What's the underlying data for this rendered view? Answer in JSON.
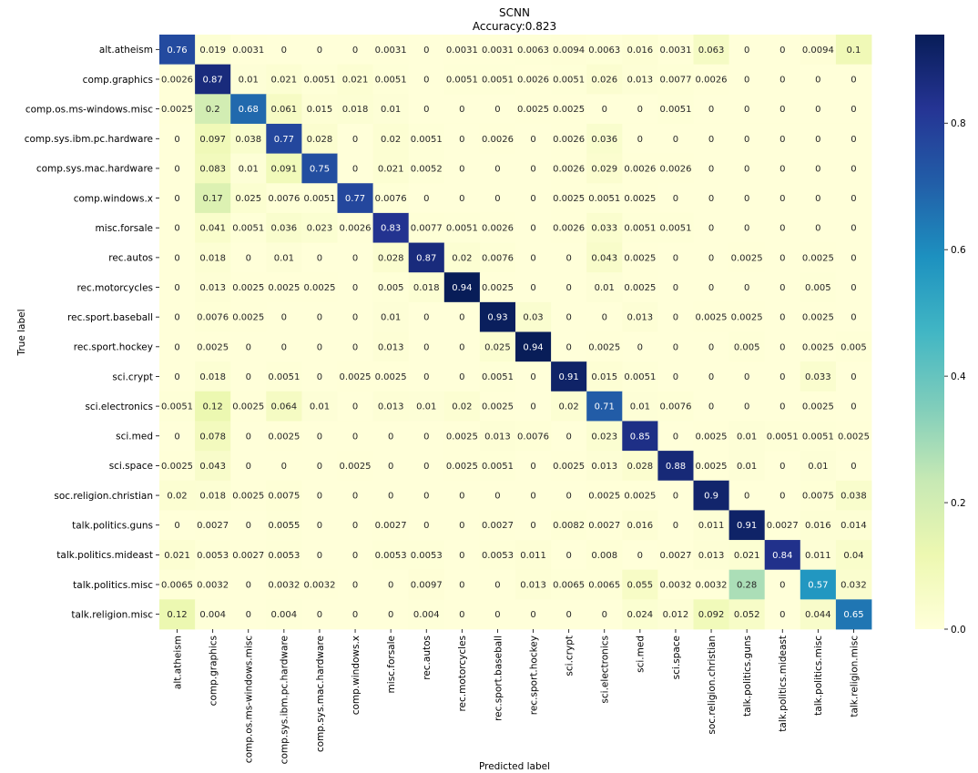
{
  "chart_data": {
    "type": "heatmap",
    "title": "SCNN",
    "subtitle": "Accuracy:0.823",
    "xlabel": "Predicted label",
    "ylabel": "True label",
    "colormap": "YlGnBu",
    "colorbar": {
      "min": 0.0,
      "max": 0.94,
      "ticks": [
        "0.0",
        "0.2",
        "0.4",
        "0.6",
        "0.8"
      ],
      "tick_values": [
        0.0,
        0.2,
        0.4,
        0.6,
        0.8
      ]
    },
    "labels": [
      "alt.atheism",
      "comp.graphics",
      "comp.os.ms-windows.misc",
      "comp.sys.ibm.pc.hardware",
      "comp.sys.mac.hardware",
      "comp.windows.x",
      "misc.forsale",
      "rec.autos",
      "rec.motorcycles",
      "rec.sport.baseball",
      "rec.sport.hockey",
      "sci.crypt",
      "sci.electronics",
      "sci.med",
      "sci.space",
      "soc.religion.christian",
      "talk.politics.guns",
      "talk.politics.mideast",
      "talk.politics.misc",
      "talk.religion.misc"
    ],
    "matrix": [
      [
        "0.76",
        "0.019",
        "0.0031",
        "0",
        "0",
        "0",
        "0.0031",
        "0",
        "0.0031",
        "0.0031",
        "0.0063",
        "0.0094",
        "0.0063",
        "0.016",
        "0.0031",
        "0.063",
        "0",
        "0",
        "0.0094",
        "0.1"
      ],
      [
        "0.0026",
        "0.87",
        "0.01",
        "0.021",
        "0.0051",
        "0.021",
        "0.0051",
        "0",
        "0.0051",
        "0.0051",
        "0.0026",
        "0.0051",
        "0.026",
        "0.013",
        "0.0077",
        "0.0026",
        "0",
        "0",
        "0",
        "0"
      ],
      [
        "0.0025",
        "0.2",
        "0.68",
        "0.061",
        "0.015",
        "0.018",
        "0.01",
        "0",
        "0",
        "0",
        "0.0025",
        "0.0025",
        "0",
        "0",
        "0.0051",
        "0",
        "0",
        "0",
        "0",
        "0"
      ],
      [
        "0",
        "0.097",
        "0.038",
        "0.77",
        "0.028",
        "0",
        "0.02",
        "0.0051",
        "0",
        "0.0026",
        "0",
        "0.0026",
        "0.036",
        "0",
        "0",
        "0",
        "0",
        "0",
        "0",
        "0"
      ],
      [
        "0",
        "0.083",
        "0.01",
        "0.091",
        "0.75",
        "0",
        "0.021",
        "0.0052",
        "0",
        "0",
        "0",
        "0.0026",
        "0.029",
        "0.0026",
        "0.0026",
        "0",
        "0",
        "0",
        "0",
        "0"
      ],
      [
        "0",
        "0.17",
        "0.025",
        "0.0076",
        "0.0051",
        "0.77",
        "0.0076",
        "0",
        "0",
        "0",
        "0",
        "0.0025",
        "0.0051",
        "0.0025",
        "0",
        "0",
        "0",
        "0",
        "0",
        "0"
      ],
      [
        "0",
        "0.041",
        "0.0051",
        "0.036",
        "0.023",
        "0.0026",
        "0.83",
        "0.0077",
        "0.0051",
        "0.0026",
        "0",
        "0.0026",
        "0.033",
        "0.0051",
        "0.0051",
        "0",
        "0",
        "0",
        "0",
        "0"
      ],
      [
        "0",
        "0.018",
        "0",
        "0.01",
        "0",
        "0",
        "0.028",
        "0.87",
        "0.02",
        "0.0076",
        "0",
        "0",
        "0.043",
        "0.0025",
        "0",
        "0",
        "0.0025",
        "0",
        "0.0025",
        "0"
      ],
      [
        "0",
        "0.013",
        "0.0025",
        "0.0025",
        "0.0025",
        "0",
        "0.005",
        "0.018",
        "0.94",
        "0.0025",
        "0",
        "0",
        "0.01",
        "0.0025",
        "0",
        "0",
        "0",
        "0",
        "0.005",
        "0"
      ],
      [
        "0",
        "0.0076",
        "0.0025",
        "0",
        "0",
        "0",
        "0.01",
        "0",
        "0",
        "0.93",
        "0.03",
        "0",
        "0",
        "0.013",
        "0",
        "0.0025",
        "0.0025",
        "0",
        "0.0025",
        "0"
      ],
      [
        "0",
        "0.0025",
        "0",
        "0",
        "0",
        "0",
        "0.013",
        "0",
        "0",
        "0.025",
        "0.94",
        "0",
        "0.0025",
        "0",
        "0",
        "0",
        "0.005",
        "0",
        "0.0025",
        "0.005"
      ],
      [
        "0",
        "0.018",
        "0",
        "0.0051",
        "0",
        "0.0025",
        "0.0025",
        "0",
        "0",
        "0.0051",
        "0",
        "0.91",
        "0.015",
        "0.0051",
        "0",
        "0",
        "0",
        "0",
        "0.033",
        "0"
      ],
      [
        "0.0051",
        "0.12",
        "0.0025",
        "0.064",
        "0.01",
        "0",
        "0.013",
        "0.01",
        "0.02",
        "0.0025",
        "0",
        "0.02",
        "0.71",
        "0.01",
        "0.0076",
        "0",
        "0",
        "0",
        "0.0025",
        "0"
      ],
      [
        "0",
        "0.078",
        "0",
        "0.0025",
        "0",
        "0",
        "0",
        "0",
        "0.0025",
        "0.013",
        "0.0076",
        "0",
        "0.023",
        "0.85",
        "0",
        "0.0025",
        "0.01",
        "0.0051",
        "0.0051",
        "0.0025"
      ],
      [
        "0.0025",
        "0.043",
        "0",
        "0",
        "0",
        "0.0025",
        "0",
        "0",
        "0.0025",
        "0.0051",
        "0",
        "0.0025",
        "0.013",
        "0.028",
        "0.88",
        "0.0025",
        "0.01",
        "0",
        "0.01",
        "0"
      ],
      [
        "0.02",
        "0.018",
        "0.0025",
        "0.0075",
        "0",
        "0",
        "0",
        "0",
        "0",
        "0",
        "0",
        "0",
        "0.0025",
        "0.0025",
        "0",
        "0.9",
        "0",
        "0",
        "0.0075",
        "0.038"
      ],
      [
        "0",
        "0.0027",
        "0",
        "0.0055",
        "0",
        "0",
        "0.0027",
        "0",
        "0",
        "0.0027",
        "0",
        "0.0082",
        "0.0027",
        "0.016",
        "0",
        "0.011",
        "0.91",
        "0.0027",
        "0.016",
        "0.014"
      ],
      [
        "0.021",
        "0.0053",
        "0.0027",
        "0.0053",
        "0",
        "0",
        "0.0053",
        "0.0053",
        "0",
        "0.0053",
        "0.011",
        "0",
        "0.008",
        "0",
        "0.0027",
        "0.013",
        "0.021",
        "0.84",
        "0.011",
        "0.04"
      ],
      [
        "0.0065",
        "0.0032",
        "0",
        "0.0032",
        "0.0032",
        "0",
        "0",
        "0.0097",
        "0",
        "0",
        "0.013",
        "0.0065",
        "0.0065",
        "0.055",
        "0.0032",
        "0.0032",
        "0.28",
        "0",
        "0.57",
        "0.032"
      ],
      [
        "0.12",
        "0.004",
        "0",
        "0.004",
        "0",
        "0",
        "0",
        "0.004",
        "0",
        "0",
        "0",
        "0",
        "0",
        "0.024",
        "0.012",
        "0.092",
        "0.052",
        "0",
        "0.044",
        "0.65"
      ]
    ]
  }
}
